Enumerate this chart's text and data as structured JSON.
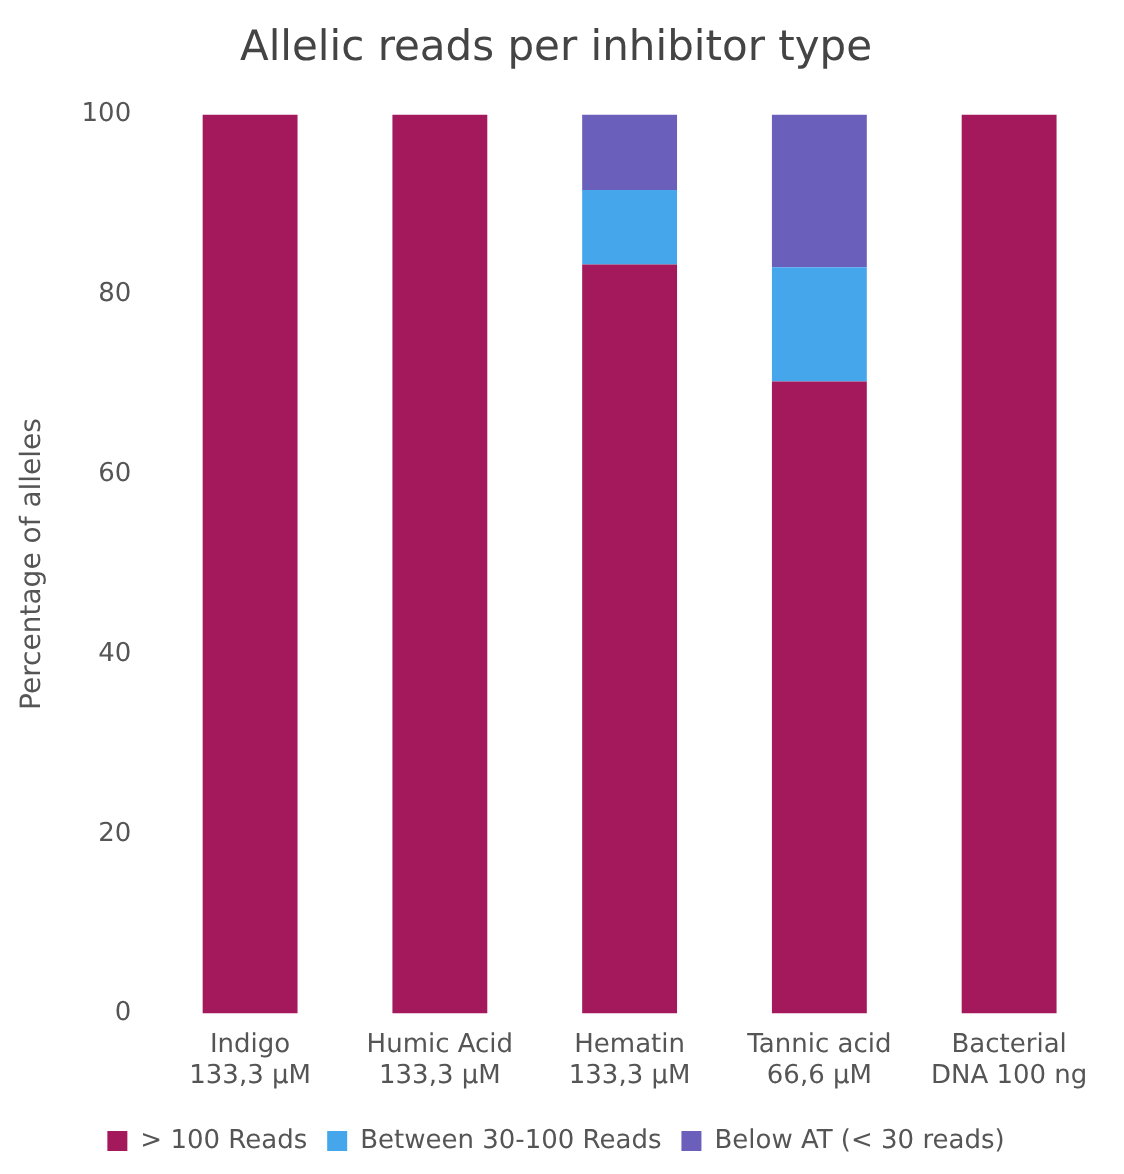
{
  "chart_data": {
    "type": "bar",
    "title": "Allelic reads per inhibitor type",
    "ylabel": "Percentage of alleles",
    "categories": [
      "Indigo\n133,3 µM",
      "Humic Acid\n133,3 µM",
      "Hematin\n133,3 µM",
      "Tannic acid\n66,6 µM",
      "Bacterial\nDNA 100 ng"
    ],
    "stacked": true,
    "ylim": [
      0,
      100
    ],
    "yticks": [
      0,
      20,
      40,
      60,
      80,
      100
    ],
    "grid": false,
    "legend": "bottom",
    "series": [
      {
        "name": "> 100 Reads",
        "color": "#a3195b",
        "values": [
          100,
          100,
          83.3,
          70.3,
          100
        ]
      },
      {
        "name": "Between 30-100 Reads",
        "color": "#45a6ec",
        "values": [
          0,
          0,
          8.3,
          12.7,
          0
        ]
      },
      {
        "name": "Below AT (< 30 reads)",
        "color": "#6a5fbb",
        "values": [
          0,
          0,
          8.4,
          17,
          0
        ]
      }
    ]
  }
}
